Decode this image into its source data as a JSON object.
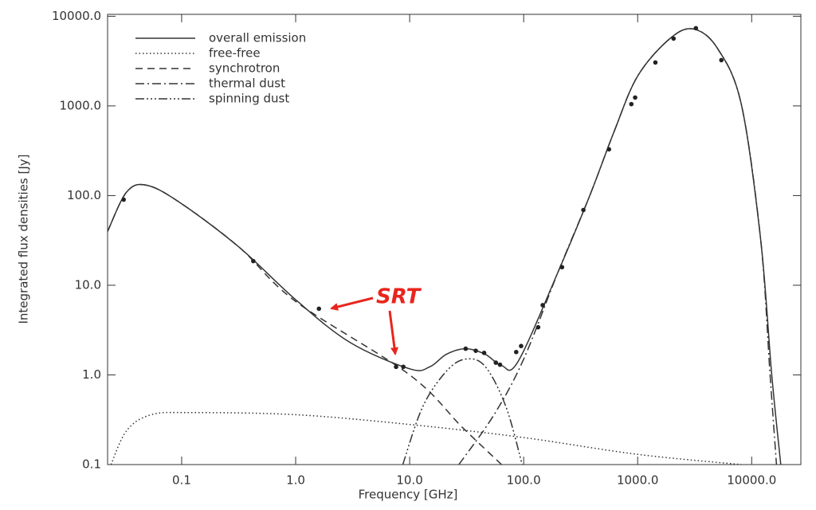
{
  "chart_data": {
    "type": "line",
    "xlabel": "Frequency [GHz]",
    "ylabel": "Integrated flux densities [Jy]",
    "annotation": "SRT",
    "log_x": true,
    "log_y": true,
    "xlim": [
      0.0224,
      27000
    ],
    "ylim": [
      0.1,
      10500
    ],
    "xticks": [
      0.1,
      {
        "value": 1,
        "label": "1.0"
      },
      {
        "value": 10,
        "label": "10.0"
      },
      {
        "value": 100,
        "label": "100.0"
      },
      {
        "value": 1000,
        "label": "1000.0"
      },
      {
        "value": 10000,
        "label": "10000.0"
      }
    ],
    "yticks": [
      0.1,
      {
        "value": 1,
        "label": "1.0"
      },
      {
        "value": 10,
        "label": "10.0"
      },
      {
        "value": 100,
        "label": "100.0"
      },
      {
        "value": 1000,
        "label": "1000.0"
      },
      {
        "value": 10000,
        "label": "10000.0"
      }
    ],
    "legend": "upper left",
    "series": [
      {
        "name": "overall emission",
        "color": "#333333",
        "dash": "solid",
        "x": [
          0.0224,
          0.033,
          0.05,
          0.1,
          0.32,
          1,
          3,
          10,
          15,
          21,
          31,
          46,
          64,
          89,
          200,
          380,
          620,
          1000,
          1920,
          3100,
          5000,
          8100,
          12000,
          15000,
          18000
        ],
        "values": [
          39.8,
          110,
          130,
          81,
          26.5,
          6.9,
          2.3,
          1.17,
          1.23,
          1.7,
          1.96,
          1.7,
          1.27,
          1.4,
          14,
          100,
          514,
          2154,
          5640,
          7200,
          4400,
          1050,
          32,
          1.0,
          0.1
        ]
      },
      {
        "name": "free-free",
        "color": "#333333",
        "dash": "dotted",
        "x": [
          0.024,
          0.033,
          0.054,
          0.12,
          1,
          10,
          100,
          1000,
          8100
        ],
        "values": [
          0.1,
          0.24,
          0.36,
          0.38,
          0.36,
          0.28,
          0.2,
          0.13,
          0.1
        ]
      },
      {
        "name": "synchrotron",
        "color": "#333333",
        "dash": "dashed",
        "x": [
          0.0224,
          0.033,
          0.05,
          0.1,
          0.32,
          1,
          10,
          29,
          64
        ],
        "values": [
          39.8,
          110,
          130,
          81,
          26.5,
          6.6,
          1.0,
          0.26,
          0.1
        ]
      },
      {
        "name": "thermal dust",
        "color": "#333333",
        "dash": "dashdot",
        "x": [
          27,
          55,
          100,
          200,
          380,
          620,
          1000,
          1920,
          3100,
          5000,
          8100,
          12000,
          14500,
          16500
        ],
        "values": [
          0.1,
          0.36,
          1.5,
          14,
          100,
          514,
          2154,
          5640,
          7200,
          4400,
          1050,
          32,
          1.0,
          0.1
        ]
      },
      {
        "name": "spinning dust",
        "color": "#333333",
        "dash": "dashdotdotdot",
        "x": [
          8.7,
          13,
          21,
          31,
          46,
          70,
          97
        ],
        "values": [
          0.1,
          0.44,
          1.1,
          1.5,
          1.24,
          0.44,
          0.1
        ]
      }
    ],
    "points": {
      "color": "#222222",
      "x": [
        0.031,
        0.425,
        1.6,
        7.6,
        8.8,
        31,
        38,
        45,
        57,
        62,
        86,
        95,
        134,
        147,
        217,
        334,
        560,
        880,
        950,
        1430,
        2065,
        3240,
        5420
      ],
      "values": [
        90,
        18.6,
        5.47,
        1.23,
        1.23,
        1.96,
        1.86,
        1.76,
        1.37,
        1.3,
        1.8,
        2.1,
        3.4,
        6.0,
        15.9,
        69,
        328,
        1047,
        1240,
        3050,
        5640,
        7360,
        3240
      ]
    }
  }
}
